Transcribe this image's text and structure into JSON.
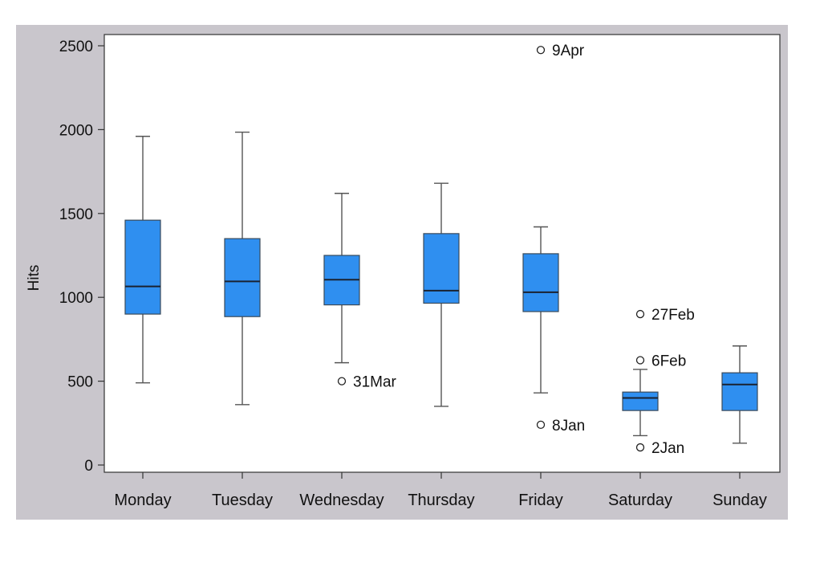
{
  "chart_data": {
    "type": "boxplot",
    "title": "",
    "xlabel": "",
    "ylabel": "Hits",
    "ylim": [
      0,
      2500
    ],
    "yticks": [
      0,
      500,
      1000,
      1500,
      2000,
      2500
    ],
    "grid": false,
    "box_color": "#2f8ff0",
    "categories": [
      "Monday",
      "Tuesday",
      "Wednesday",
      "Thursday",
      "Friday",
      "Saturday",
      "Sunday"
    ],
    "boxes": [
      {
        "category": "Monday",
        "whisker_low": 490,
        "q1": 900,
        "median": 1065,
        "q3": 1460,
        "whisker_high": 1960,
        "outliers": []
      },
      {
        "category": "Tuesday",
        "whisker_low": 360,
        "q1": 885,
        "median": 1095,
        "q3": 1350,
        "whisker_high": 1985,
        "outliers": []
      },
      {
        "category": "Wednesday",
        "whisker_low": 610,
        "q1": 955,
        "median": 1105,
        "q3": 1250,
        "whisker_high": 1620,
        "outliers": [
          {
            "value": 500,
            "label": "31Mar"
          }
        ]
      },
      {
        "category": "Thursday",
        "whisker_low": 350,
        "q1": 965,
        "median": 1040,
        "q3": 1380,
        "whisker_high": 1680,
        "outliers": []
      },
      {
        "category": "Friday",
        "whisker_low": 430,
        "q1": 915,
        "median": 1030,
        "q3": 1260,
        "whisker_high": 1420,
        "outliers": [
          {
            "value": 2475,
            "label": "9Apr"
          },
          {
            "value": 240,
            "label": "8Jan"
          }
        ]
      },
      {
        "category": "Saturday",
        "whisker_low": 175,
        "q1": 325,
        "median": 400,
        "q3": 435,
        "whisker_high": 570,
        "outliers": [
          {
            "value": 900,
            "label": "27Feb"
          },
          {
            "value": 625,
            "label": "6Feb"
          },
          {
            "value": 105,
            "label": "2Jan"
          }
        ]
      },
      {
        "category": "Sunday",
        "whisker_low": 130,
        "q1": 325,
        "median": 480,
        "q3": 550,
        "whisker_high": 710,
        "outliers": []
      }
    ]
  }
}
